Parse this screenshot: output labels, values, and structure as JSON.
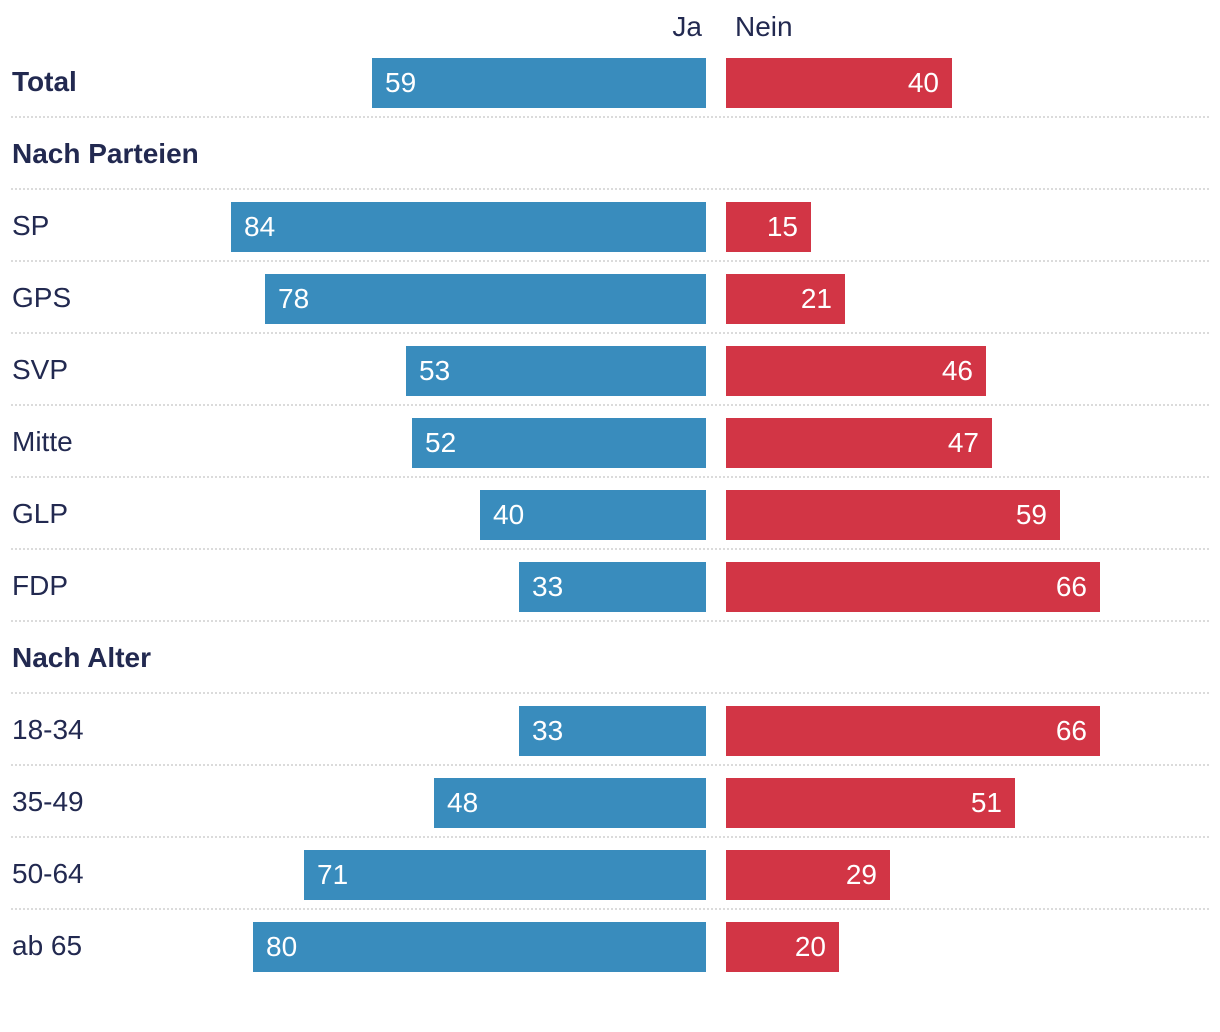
{
  "colors": {
    "ja_bar": "#398cbd",
    "nein_bar": "#d23545",
    "label_text": "#222950",
    "bar_value_text": "#ffffff",
    "separator_dots": "#dbdbdb"
  },
  "chart_data": {
    "type": "bar",
    "orientation": "horizontal",
    "diverging_from_center": true,
    "value_range_each_side": [
      0,
      100
    ],
    "grid": "dotted row separators",
    "legend": [
      "Ja",
      "Nein"
    ],
    "legend_position": "top-center",
    "series_names": [
      "Ja",
      "Nein"
    ],
    "groups": [
      {
        "header": "",
        "rows": [
          {
            "label": "Total",
            "bold": true,
            "ja": 59,
            "nein": 40
          }
        ]
      },
      {
        "header": "Nach Parteien",
        "rows": [
          {
            "label": "SP",
            "bold": false,
            "ja": 84,
            "nein": 15
          },
          {
            "label": "GPS",
            "bold": false,
            "ja": 78,
            "nein": 21
          },
          {
            "label": "SVP",
            "bold": false,
            "ja": 53,
            "nein": 46
          },
          {
            "label": "Mitte",
            "bold": false,
            "ja": 52,
            "nein": 47
          },
          {
            "label": "GLP",
            "bold": false,
            "ja": 40,
            "nein": 59
          },
          {
            "label": "FDP",
            "bold": false,
            "ja": 33,
            "nein": 66
          }
        ]
      },
      {
        "header": "Nach Alter",
        "rows": [
          {
            "label": "18-34",
            "bold": false,
            "ja": 33,
            "nein": 66
          },
          {
            "label": "35-49",
            "bold": false,
            "ja": 48,
            "nein": 51
          },
          {
            "label": "50-64",
            "bold": false,
            "ja": 71,
            "nein": 29
          },
          {
            "label": "ab 65",
            "bold": false,
            "ja": 80,
            "nein": 20
          }
        ]
      }
    ]
  }
}
